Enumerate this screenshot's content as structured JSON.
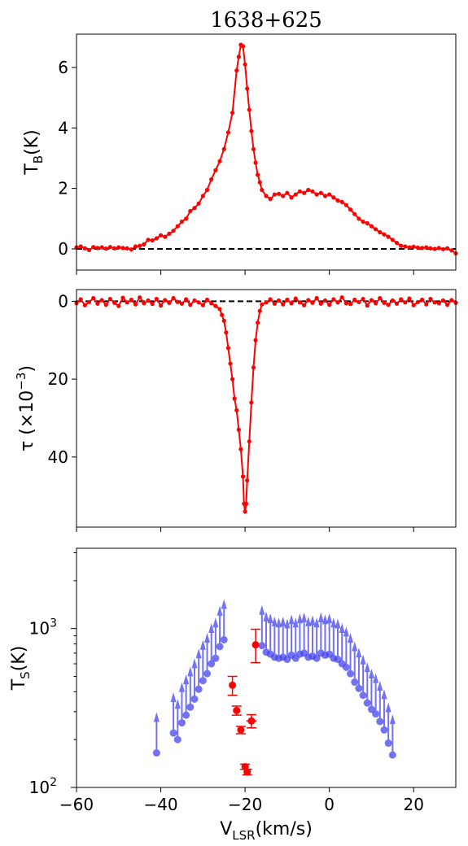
{
  "chart_data": [
    {
      "type": "line",
      "title": "1638+625",
      "ylabel_main": "T",
      "ylabel_sub": "B",
      "ylabel_suffix": "(K)",
      "xlim": [
        -60,
        30
      ],
      "ylim": [
        -0.7,
        7.1
      ],
      "yticks": [
        0,
        2,
        4,
        6
      ],
      "yticklabels": [
        "0",
        "2",
        "4",
        "6"
      ],
      "color": "#ff0000",
      "reference_line": 0,
      "series": [
        {
          "x": [
            -60,
            -59,
            -58,
            -57,
            -56,
            -55,
            -54,
            -53,
            -52,
            -51,
            -50,
            -49,
            -48,
            -47,
            -46,
            -45,
            -44,
            -43,
            -42,
            -41,
            -40,
            -39,
            -38,
            -37,
            -36,
            -35,
            -34,
            -33,
            -32,
            -31,
            -30,
            -29,
            -28,
            -27,
            -26,
            -25,
            -24,
            -23,
            -22,
            -21.5,
            -21,
            -20.5,
            -20,
            -19.5,
            -19,
            -18.5,
            -18,
            -17.5,
            -17,
            -16.5,
            -16,
            -15,
            -14,
            -13,
            -12,
            -11,
            -10,
            -9,
            -8,
            -7,
            -6,
            -5,
            -4,
            -3,
            -2,
            -1,
            0,
            1,
            2,
            3,
            4,
            5,
            6,
            7,
            8,
            9,
            10,
            11,
            12,
            13,
            14,
            15,
            16,
            17,
            18,
            19,
            20,
            21,
            22,
            23,
            24,
            25,
            26,
            27,
            28,
            29,
            30
          ],
          "values": [
            0.05,
            0.08,
            0.02,
            -0.04,
            0.06,
            0.03,
            0.05,
            0.01,
            0.06,
            0.02,
            0.05,
            0.03,
            0.02,
            -0.02,
            0.08,
            0.1,
            0.15,
            0.3,
            0.28,
            0.35,
            0.45,
            0.4,
            0.5,
            0.6,
            0.75,
            0.9,
            1.0,
            1.25,
            1.35,
            1.5,
            1.75,
            1.95,
            2.3,
            2.6,
            2.9,
            3.3,
            3.85,
            4.5,
            5.9,
            6.35,
            6.75,
            6.7,
            6.1,
            5.3,
            4.6,
            3.9,
            3.3,
            2.85,
            2.45,
            2.2,
            1.95,
            1.75,
            1.65,
            1.8,
            1.82,
            1.75,
            1.85,
            1.7,
            1.8,
            1.9,
            1.85,
            1.95,
            1.9,
            1.8,
            1.85,
            1.75,
            1.8,
            1.7,
            1.6,
            1.55,
            1.45,
            1.3,
            1.15,
            1.0,
            0.9,
            0.85,
            0.75,
            0.65,
            0.55,
            0.48,
            0.4,
            0.3,
            0.2,
            0.1,
            0.08,
            0.05,
            0.07,
            0.04,
            0.03,
            0.05,
            0.02,
            0.0,
            0.03,
            -0.01,
            0.02,
            -0.05,
            -0.15
          ]
        }
      ]
    },
    {
      "type": "line",
      "ylabel_prefix": "τ (×10",
      "ylabel_exp": "−3",
      "ylabel_suffix": ")",
      "xlim": [
        -60,
        30
      ],
      "ylim": [
        58,
        -3
      ],
      "yticks": [
        0,
        20,
        40
      ],
      "yticklabels": [
        "0",
        "20",
        "40"
      ],
      "color": "#ff0000",
      "reference_line": 0,
      "series": [
        {
          "x": [
            -60,
            -59,
            -58,
            -57,
            -56,
            -55,
            -54,
            -53,
            -52,
            -51,
            -50,
            -49,
            -48,
            -47,
            -46,
            -45,
            -44,
            -43,
            -42,
            -41,
            -40,
            -39,
            -38,
            -37,
            -36,
            -35,
            -34,
            -33,
            -32,
            -31,
            -30,
            -29,
            -28,
            -27,
            -26,
            -25.5,
            -25,
            -24.5,
            -24,
            -23.5,
            -23,
            -22.5,
            -22,
            -21.5,
            -21,
            -20.5,
            -20.25,
            -20,
            -19.75,
            -19.5,
            -19,
            -18.5,
            -18,
            -17.5,
            -17,
            -16.5,
            -16,
            -15,
            -14,
            -13,
            -12,
            -11,
            -10,
            -9,
            -8,
            -7,
            -6,
            -5,
            -4,
            -3,
            -2,
            -1,
            0,
            1,
            2,
            3,
            4,
            5,
            6,
            7,
            8,
            9,
            10,
            11,
            12,
            13,
            14,
            15,
            16,
            17,
            18,
            19,
            20,
            21,
            22,
            23,
            24,
            25,
            26,
            27,
            28,
            29,
            30
          ],
          "values": [
            0.5,
            -0.5,
            1.0,
            0.2,
            -0.8,
            0.6,
            -0.3,
            0.9,
            -0.6,
            0.4,
            1.2,
            -0.9,
            0.3,
            -0.4,
            0.8,
            -1.0,
            0.5,
            -0.2,
            0.7,
            -0.6,
            1.1,
            -0.3,
            0.4,
            -0.8,
            0.2,
            0.6,
            -0.5,
            0.9,
            -0.2,
            0.3,
            1.0,
            -0.4,
            0.5,
            1.2,
            2.0,
            3.5,
            5.0,
            8.0,
            12.0,
            16.0,
            20.0,
            25.0,
            28.0,
            33.0,
            38.0,
            45.0,
            52.0,
            54.0,
            52.0,
            46.0,
            36.0,
            26.0,
            17.0,
            10.0,
            5.5,
            2.5,
            0.8,
            0.3,
            -0.5,
            0.6,
            -0.2,
            0.8,
            -0.4,
            0.5,
            -0.7,
            0.3,
            1.0,
            -0.3,
            0.4,
            -0.8,
            0.6,
            -0.2,
            0.9,
            -0.5,
            0.3,
            -1.0,
            0.5,
            0.7,
            -0.4,
            0.2,
            -0.6,
            1.1,
            -0.3,
            0.5,
            -0.8,
            0.4,
            0.9,
            -0.2,
            0.6,
            -0.5,
            0.3,
            -0.7,
            1.0,
            0.2,
            -0.4,
            0.8,
            -0.6,
            0.3,
            0.5,
            -0.2,
            0.9,
            -0.3,
            0.4
          ]
        }
      ]
    },
    {
      "type": "scatter",
      "ylabel_main": "T",
      "ylabel_sub": "S",
      "ylabel_suffix": "(K)",
      "xlabel_main": "V",
      "xlabel_sub": "LSR",
      "xlabel_suffix": "(km/s)",
      "xlim": [
        -60,
        30
      ],
      "ylim": [
        100,
        3200
      ],
      "yscale": "log",
      "xticks": [
        -60,
        -40,
        -20,
        0,
        20
      ],
      "xticklabels": [
        "−60",
        "−40",
        "−20",
        "0",
        "20"
      ],
      "yticks": [
        100,
        1000
      ],
      "yticklabels_base": [
        "10",
        "10"
      ],
      "yticklabels_exp": [
        "2",
        "3"
      ],
      "series": [
        {
          "name": "lower limits",
          "color": "#4444ee",
          "x": [
            -41,
            -37,
            -36,
            -35,
            -34,
            -33,
            -32,
            -31,
            -30,
            -29,
            -28,
            -27,
            -26,
            -25,
            -16,
            -15,
            -14,
            -13,
            -12,
            -11,
            -10,
            -9,
            -8,
            -7,
            -6,
            -5,
            -4,
            -3,
            -2,
            -1,
            0,
            1,
            2,
            3,
            4,
            5,
            6,
            7,
            8,
            9,
            10,
            11,
            12,
            13,
            14,
            15
          ],
          "values": [
            165,
            220,
            200,
            255,
            285,
            320,
            360,
            415,
            470,
            520,
            600,
            650,
            770,
            850,
            780,
            710,
            690,
            660,
            650,
            660,
            640,
            680,
            650,
            690,
            700,
            660,
            670,
            650,
            700,
            680,
            690,
            650,
            640,
            600,
            570,
            520,
            460,
            420,
            380,
            340,
            310,
            290,
            260,
            230,
            190,
            160
          ]
        },
        {
          "name": "detections",
          "color": "#ff0000",
          "x": [
            -23,
            -22,
            -21,
            -20,
            -19.5,
            -18.5,
            -17.5
          ],
          "values": [
            440,
            305,
            230,
            135,
            125,
            262,
            790
          ],
          "err_low": [
            60,
            20,
            12,
            5,
            5,
            25,
            180
          ],
          "err_high": [
            60,
            20,
            12,
            5,
            5,
            25,
            200
          ],
          "xerr": [
            0,
            0.6,
            0.6,
            0.6,
            0.8,
            1.2,
            0
          ]
        }
      ]
    }
  ]
}
